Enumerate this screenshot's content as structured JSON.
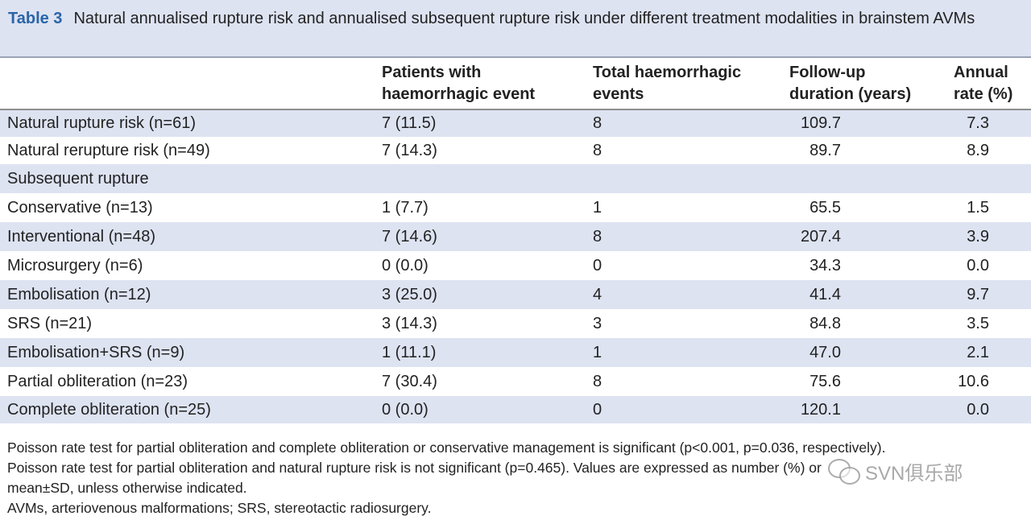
{
  "caption": {
    "label": "Table 3",
    "text": "Natural annualised rupture risk and annualised subsequent rupture risk under different treatment modalities in brainstem AVMs"
  },
  "table": {
    "headers": [
      "",
      "Patients with\nhaemorrhagic event",
      "Total haemorrhagic\nevents",
      "Follow-up\nduration (years)",
      "Annual\nrate (%)"
    ],
    "rows": [
      {
        "label": "Natural rupture risk (n=61)",
        "patients": "7 (11.5)",
        "events": "8",
        "followup": "109.7",
        "rate": "7.3",
        "indent": 0,
        "band": true
      },
      {
        "label": "Natural rerupture risk (n=49)",
        "patients": "7 (14.3)",
        "events": "8",
        "followup": "89.7",
        "rate": "8.9",
        "indent": 0,
        "band": false
      },
      {
        "label": "Subsequent rupture",
        "patients": "",
        "events": "",
        "followup": "",
        "rate": "",
        "indent": 0,
        "band": true
      },
      {
        "label": "Conservative (n=13)",
        "patients": "1 (7.7)",
        "events": "1",
        "followup": "65.5",
        "rate": "1.5",
        "indent": 1,
        "band": false
      },
      {
        "label": "Interventional (n=48)",
        "patients": "7 (14.6)",
        "events": "8",
        "followup": "207.4",
        "rate": "3.9",
        "indent": 1,
        "band": true
      },
      {
        "label": "Microsurgery (n=6)",
        "patients": "0 (0.0)",
        "events": "0",
        "followup": "34.3",
        "rate": "0.0",
        "indent": 2,
        "band": false
      },
      {
        "label": "Embolisation (n=12)",
        "patients": "3 (25.0)",
        "events": "4",
        "followup": "41.4",
        "rate": "9.7",
        "indent": 2,
        "band": true
      },
      {
        "label": "SRS (n=21)",
        "patients": "3 (14.3)",
        "events": "3",
        "followup": "84.8",
        "rate": "3.5",
        "indent": 2,
        "band": false
      },
      {
        "label": "Embolisation+SRS (n=9)",
        "patients": "1 (11.1)",
        "events": "1",
        "followup": "47.0",
        "rate": "2.1",
        "indent": 2,
        "band": true
      },
      {
        "label": "Partial obliteration (n=23)",
        "patients": "7 (30.4)",
        "events": "8",
        "followup": "75.6",
        "rate": "10.6",
        "indent": 0,
        "band": false
      },
      {
        "label": "Complete obliteration (n=25)",
        "patients": "0 (0.0)",
        "events": "0",
        "followup": "120.1",
        "rate": "0.0",
        "indent": 0,
        "band": true
      }
    ]
  },
  "footnotes": [
    "Poisson rate test for partial obliteration and complete obliteration or conservative management is significant (p<0.001, p=0.036, respectively).",
    "Poisson rate test for partial obliteration and natural rupture risk is not significant (p=0.465). Values are expressed as number (%) or",
    "mean±SD, unless otherwise indicated.",
    "AVMs, arteriovenous malformations; SRS, stereotactic radiosurgery."
  ],
  "watermark": {
    "text": "SVN俱乐部",
    "icon": "wechat-icon"
  }
}
